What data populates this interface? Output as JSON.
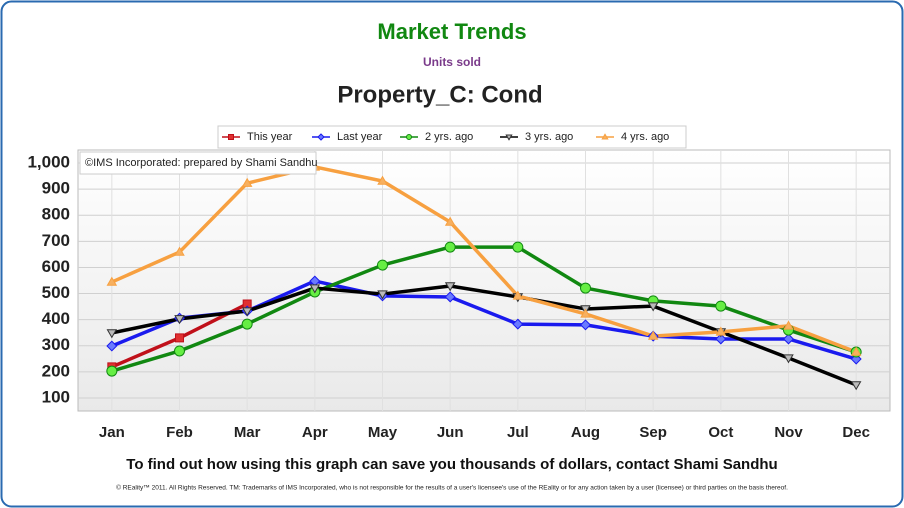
{
  "chart_data": {
    "type": "line",
    "header": "Market Trends",
    "subtitle": "Units sold",
    "title": "Property_C: Cond",
    "annotation": "©IMS Incorporated: prepared by Shami Sandhu",
    "footer": "To find out how using this graph can save you thousands of dollars, contact Shami Sandhu",
    "footnote": "© REality™ 2011. All Rights Reserved. TM: Trademarks of IMS Incorporated, who is not responsible for the results of a user's licensee's use of the REality  or for any action taken by a user (licensee) or third parties on the basis thereof.",
    "categories": [
      "Jan",
      "Feb",
      "Mar",
      "Apr",
      "May",
      "Jun",
      "Jul",
      "Aug",
      "Sep",
      "Oct",
      "Nov",
      "Dec"
    ],
    "ylim": [
      50,
      1050
    ],
    "yticks": [
      100,
      200,
      300,
      400,
      500,
      600,
      700,
      800,
      900,
      {
        "value": 1000,
        "label": "1,000"
      }
    ],
    "grid": true,
    "legend": "top",
    "series": [
      {
        "name": "This year",
        "color": "#c0101a",
        "marker": "square",
        "marker_fill": "#e03030",
        "values": [
          219,
          330,
          460,
          null,
          null,
          null,
          null,
          null,
          null,
          null,
          null,
          null
        ]
      },
      {
        "name": "Last year",
        "color": "#1a1aee",
        "marker": "diamond",
        "marker_fill": "#6a7aff",
        "values": [
          299,
          406,
          433,
          548,
          491,
          487,
          383,
          380,
          337,
          326,
          326,
          249
        ]
      },
      {
        "name": "2 yrs. ago",
        "color": "#118811",
        "marker": "circle",
        "marker_fill": "#66ee44",
        "values": [
          203,
          280,
          383,
          506,
          609,
          678,
          678,
          521,
          472,
          452,
          360,
          276
        ]
      },
      {
        "name": "3 yrs. ago",
        "color": "#000000",
        "marker": "triangle-down",
        "marker_fill": "#bbbbbb",
        "values": [
          349,
          403,
          433,
          521,
          498,
          529,
          487,
          441,
          452,
          353,
          253,
          150
        ]
      },
      {
        "name": "4 yrs. ago",
        "color": "#f7a040",
        "marker": "triangle-up",
        "marker_fill": "#f7b060",
        "values": [
          544,
          659,
          923,
          985,
          931,
          774,
          491,
          422,
          337,
          353,
          376,
          276
        ]
      }
    ]
  }
}
